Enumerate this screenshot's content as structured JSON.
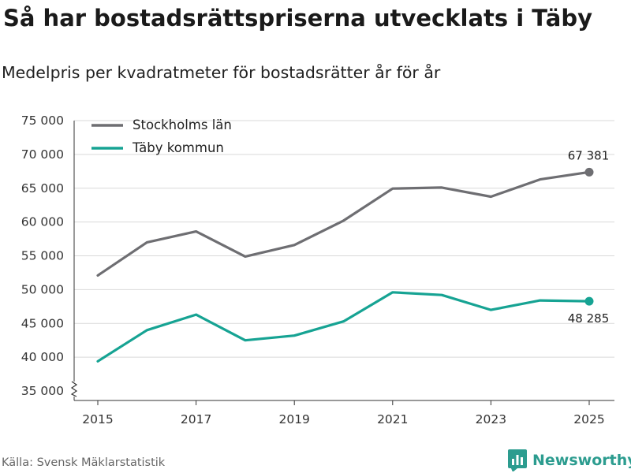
{
  "title": "Så har bostadsrättspriserna utvecklats i Täby",
  "subtitle": "Medelpris per kvadratmeter för bostadsrätter år för år",
  "source": "Källa: Svensk Mäklarstatistik",
  "brand": "Newsworthy",
  "chart_data": {
    "type": "line",
    "title": "Så har bostadsrättspriserna utvecklats i Täby",
    "xlabel": "",
    "ylabel": "",
    "x": [
      2015,
      2016,
      2017,
      2018,
      2019,
      2020,
      2021,
      2022,
      2023,
      2024,
      2025
    ],
    "x_tick_labels": [
      "2015",
      "2017",
      "2019",
      "2021",
      "2023",
      "2025"
    ],
    "y_ticks": [
      35000,
      40000,
      45000,
      50000,
      55000,
      60000,
      65000,
      70000,
      75000
    ],
    "y_tick_labels": [
      "35 000",
      "40 000",
      "45 000",
      "50 000",
      "55 000",
      "60 000",
      "65 000",
      "70 000",
      "75 000"
    ],
    "ylim": [
      35000,
      75000
    ],
    "legend_position": "top-left",
    "series": [
      {
        "name": "Stockholms län",
        "color": "#6e6e72",
        "values": [
          52100,
          57000,
          58600,
          54900,
          56600,
          60200,
          64950,
          65100,
          63750,
          66300,
          67381
        ],
        "end_label": "67 381"
      },
      {
        "name": "Täby kommun",
        "color": "#16a393",
        "values": [
          39400,
          44000,
          46300,
          42500,
          43200,
          45300,
          49600,
          49200,
          47000,
          48400,
          48285
        ],
        "end_label": "48 285"
      }
    ]
  }
}
